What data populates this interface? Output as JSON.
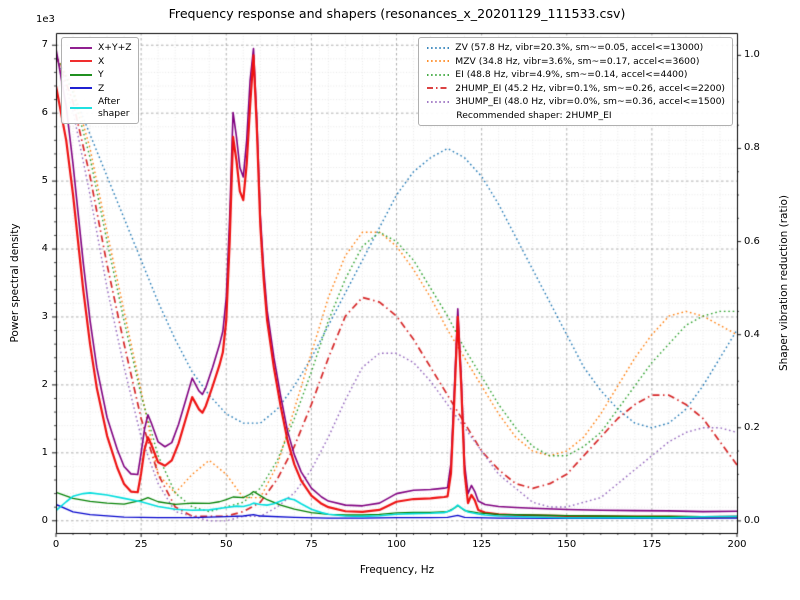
{
  "chart_data": {
    "type": "line",
    "title": "Frequency response and shapers (resonances_x_20201129_111533.csv)",
    "xlabel": "Frequency, Hz",
    "ylabel": "Power spectral density",
    "y2label": "Shaper vibration reduction (ratio)",
    "xlim": [
      0,
      200
    ],
    "ylim": [
      -180,
      7180
    ],
    "y2lim": [
      -0.026,
      1.048
    ],
    "x_ticks": {
      "values": [
        0,
        25,
        50,
        75,
        100,
        125,
        150,
        175,
        200
      ],
      "labels": [
        "0",
        "25",
        "50",
        "75",
        "100",
        "125",
        "150",
        "175",
        "200"
      ]
    },
    "y_ticks": {
      "values": [
        0,
        1000,
        2000,
        3000,
        4000,
        5000,
        6000,
        7000
      ],
      "labels": [
        "0",
        "1",
        "2",
        "3",
        "4",
        "5",
        "6",
        "7"
      ],
      "offset_text": "1e3"
    },
    "y2_ticks": {
      "values": [
        0,
        0.2,
        0.4,
        0.6,
        0.8,
        1.0
      ],
      "labels": [
        "0.0",
        "0.2",
        "0.4",
        "0.6",
        "0.8",
        "1.0"
      ]
    },
    "grid": {
      "x_minor_step": 5,
      "y_minor_step": 200,
      "major_color": "#9b9b9b",
      "minor_color": "#dedede"
    },
    "legend_psd": {
      "items": [
        {
          "label": "X+Y+Z",
          "color": "#800080",
          "dash": "solid"
        },
        {
          "label": "X",
          "color": "#ee1111",
          "dash": "solid"
        },
        {
          "label": "Y",
          "color": "#008000",
          "dash": "solid"
        },
        {
          "label": "Z",
          "color": "#0000cc",
          "dash": "solid"
        },
        {
          "label": "After shaper",
          "color": "#00dddd",
          "dash": "solid"
        }
      ]
    },
    "legend_shapers": {
      "items": [
        {
          "label": "ZV (57.8 Hz, vibr=20.3%, sm~=0.05, accel<=13000)",
          "color": "#1f77b4",
          "dash": "dotted"
        },
        {
          "label": "MZV (34.8 Hz, vibr=3.6%, sm~=0.17, accel<=3600)",
          "color": "#ff7f0e",
          "dash": "dotted"
        },
        {
          "label": "EI (48.8 Hz, vibr=4.9%, sm~=0.14, accel<=4400)",
          "color": "#2ca02c",
          "dash": "dotted"
        },
        {
          "label": "2HUMP_EI (45.2 Hz, vibr=0.1%, sm~=0.26, accel<=2200)",
          "color": "#d62728",
          "dash": "dashdot"
        },
        {
          "label": "3HUMP_EI (48.0 Hz, vibr=0.0%, sm~=0.36, accel<=1500)",
          "color": "#9467bd",
          "dash": "dotted"
        }
      ],
      "note": "Recommended shaper: 2HUMP_EI"
    },
    "series": [
      {
        "name": "ZV",
        "axis": "right",
        "color": "#1f77b4",
        "dash": "dotted",
        "width": 1.4,
        "x": [
          0,
          5,
          10,
          15,
          20,
          25,
          30,
          35,
          40,
          45,
          50,
          55,
          60,
          65,
          70,
          75,
          80,
          85,
          90,
          95,
          100,
          105,
          110,
          115,
          120,
          125,
          130,
          135,
          140,
          145,
          150,
          155,
          160,
          165,
          170,
          175,
          180,
          185,
          190,
          195,
          200
        ],
        "y": [
          1.0,
          0.92,
          0.83,
          0.74,
          0.65,
          0.56,
          0.47,
          0.39,
          0.32,
          0.27,
          0.23,
          0.21,
          0.21,
          0.24,
          0.29,
          0.35,
          0.42,
          0.49,
          0.56,
          0.63,
          0.7,
          0.75,
          0.78,
          0.8,
          0.78,
          0.74,
          0.68,
          0.61,
          0.54,
          0.47,
          0.4,
          0.33,
          0.28,
          0.24,
          0.21,
          0.2,
          0.21,
          0.24,
          0.29,
          0.35,
          0.41
        ]
      },
      {
        "name": "MZV",
        "axis": "right",
        "color": "#ff7f0e",
        "dash": "dotted",
        "width": 1.4,
        "x": [
          0,
          5,
          10,
          15,
          20,
          25,
          30,
          35,
          40,
          45,
          50,
          55,
          60,
          65,
          70,
          75,
          80,
          85,
          90,
          95,
          100,
          105,
          110,
          115,
          120,
          125,
          130,
          135,
          140,
          145,
          150,
          155,
          160,
          165,
          170,
          175,
          180,
          185,
          190,
          195,
          200
        ],
        "y": [
          1.0,
          0.93,
          0.8,
          0.62,
          0.45,
          0.28,
          0.1,
          0.06,
          0.1,
          0.13,
          0.1,
          0.05,
          0.05,
          0.12,
          0.24,
          0.36,
          0.48,
          0.57,
          0.62,
          0.62,
          0.59,
          0.54,
          0.48,
          0.41,
          0.35,
          0.29,
          0.23,
          0.18,
          0.15,
          0.14,
          0.15,
          0.18,
          0.23,
          0.29,
          0.35,
          0.4,
          0.44,
          0.45,
          0.44,
          0.42,
          0.4
        ]
      },
      {
        "name": "EI",
        "axis": "right",
        "color": "#2ca02c",
        "dash": "dotted",
        "width": 1.4,
        "x": [
          0,
          5,
          10,
          15,
          20,
          25,
          30,
          35,
          40,
          45,
          50,
          55,
          60,
          65,
          70,
          75,
          80,
          85,
          90,
          95,
          100,
          105,
          110,
          115,
          120,
          125,
          130,
          135,
          140,
          145,
          150,
          155,
          160,
          165,
          170,
          175,
          180,
          185,
          190,
          195,
          200
        ],
        "y": [
          1.0,
          0.92,
          0.78,
          0.6,
          0.43,
          0.27,
          0.14,
          0.06,
          0.03,
          0.02,
          0.03,
          0.04,
          0.07,
          0.13,
          0.22,
          0.32,
          0.43,
          0.52,
          0.59,
          0.62,
          0.6,
          0.56,
          0.5,
          0.44,
          0.37,
          0.31,
          0.25,
          0.2,
          0.16,
          0.14,
          0.14,
          0.16,
          0.19,
          0.24,
          0.29,
          0.34,
          0.38,
          0.42,
          0.44,
          0.45,
          0.45
        ]
      },
      {
        "name": "2HUMP_EI",
        "axis": "right",
        "color": "#d62728",
        "dash": "dashdot",
        "width": 1.7,
        "x": [
          0,
          5,
          10,
          15,
          20,
          25,
          30,
          35,
          40,
          45,
          50,
          55,
          60,
          65,
          70,
          75,
          80,
          85,
          90,
          95,
          100,
          105,
          110,
          115,
          120,
          125,
          130,
          135,
          140,
          145,
          150,
          155,
          160,
          165,
          170,
          175,
          180,
          185,
          190,
          195,
          200
        ],
        "y": [
          1.0,
          0.9,
          0.74,
          0.55,
          0.38,
          0.22,
          0.1,
          0.03,
          0.01,
          0.01,
          0.01,
          0.02,
          0.04,
          0.09,
          0.16,
          0.25,
          0.35,
          0.44,
          0.48,
          0.47,
          0.44,
          0.39,
          0.33,
          0.27,
          0.21,
          0.15,
          0.11,
          0.08,
          0.07,
          0.08,
          0.1,
          0.14,
          0.18,
          0.22,
          0.25,
          0.27,
          0.27,
          0.25,
          0.22,
          0.17,
          0.12
        ]
      },
      {
        "name": "3HUMP_EI",
        "axis": "right",
        "color": "#9467bd",
        "dash": "dotted",
        "width": 1.4,
        "x": [
          0,
          5,
          10,
          15,
          20,
          25,
          30,
          35,
          40,
          45,
          50,
          55,
          60,
          65,
          70,
          75,
          80,
          85,
          90,
          95,
          100,
          105,
          110,
          115,
          120,
          125,
          130,
          135,
          140,
          145,
          150,
          155,
          160,
          165,
          170,
          175,
          180,
          185,
          190,
          195,
          200
        ],
        "y": [
          1.0,
          0.88,
          0.7,
          0.5,
          0.33,
          0.18,
          0.08,
          0.02,
          0.01,
          0.0,
          0.0,
          0.01,
          0.01,
          0.03,
          0.06,
          0.11,
          0.18,
          0.26,
          0.33,
          0.36,
          0.36,
          0.34,
          0.3,
          0.25,
          0.2,
          0.15,
          0.1,
          0.07,
          0.04,
          0.03,
          0.03,
          0.04,
          0.05,
          0.08,
          0.11,
          0.14,
          0.17,
          0.19,
          0.2,
          0.2,
          0.19
        ]
      },
      {
        "name": "X+Y+Z",
        "axis": "left",
        "color": "#800080",
        "dash": "solid",
        "width": 1.6,
        "x": [
          0,
          3,
          5,
          8,
          10,
          12,
          15,
          18,
          20,
          22,
          24,
          25,
          26,
          27,
          28,
          30,
          32,
          34,
          36,
          38,
          40,
          42,
          43,
          44,
          46,
          48,
          49,
          50,
          51,
          52,
          53,
          54,
          55,
          56,
          57,
          58,
          59,
          60,
          61,
          62,
          64,
          66,
          68,
          70,
          72,
          75,
          78,
          80,
          85,
          90,
          95,
          100,
          105,
          110,
          112,
          114,
          115,
          116,
          117,
          118,
          119,
          120,
          121,
          122,
          123,
          124,
          126,
          130,
          135,
          140,
          150,
          160,
          170,
          180,
          190,
          200
        ],
        "y": [
          6950,
          6100,
          5250,
          3800,
          2950,
          2250,
          1520,
          1050,
          800,
          690,
          680,
          1000,
          1350,
          1560,
          1440,
          1160,
          1090,
          1150,
          1420,
          1760,
          2100,
          1910,
          1860,
          1960,
          2260,
          2590,
          2790,
          3280,
          4460,
          6010,
          5650,
          5200,
          5060,
          5600,
          6480,
          6950,
          5900,
          4500,
          3700,
          3100,
          2400,
          1830,
          1320,
          970,
          720,
          480,
          350,
          290,
          230,
          220,
          260,
          400,
          450,
          460,
          470,
          480,
          490,
          850,
          1950,
          3120,
          2130,
          830,
          400,
          520,
          430,
          290,
          240,
          210,
          195,
          185,
          165,
          155,
          150,
          145,
          135,
          140
        ]
      },
      {
        "name": "X",
        "axis": "left",
        "color": "#ee1111",
        "dash": "solid",
        "width": 2.2,
        "x": [
          0,
          3,
          5,
          8,
          10,
          12,
          15,
          18,
          20,
          22,
          24,
          25,
          26,
          27,
          28,
          30,
          32,
          34,
          36,
          38,
          40,
          42,
          43,
          44,
          46,
          48,
          49,
          50,
          51,
          52,
          53,
          54,
          55,
          56,
          57,
          58,
          59,
          60,
          61,
          62,
          64,
          66,
          68,
          70,
          72,
          75,
          78,
          80,
          85,
          90,
          95,
          100,
          105,
          110,
          112,
          114,
          115,
          116,
          117,
          118,
          119,
          120,
          121,
          122,
          123,
          124,
          126,
          130,
          135,
          140,
          150,
          160,
          170,
          180,
          190,
          200
        ],
        "y": [
          6400,
          5600,
          4800,
          3400,
          2600,
          1950,
          1250,
          780,
          540,
          430,
          420,
          700,
          1050,
          1230,
          1120,
          860,
          810,
          890,
          1140,
          1480,
          1820,
          1640,
          1590,
          1690,
          1980,
          2290,
          2480,
          2950,
          4100,
          5650,
          5300,
          4850,
          4720,
          5250,
          6100,
          6850,
          5750,
          4350,
          3550,
          2950,
          2250,
          1680,
          1180,
          830,
          590,
          370,
          250,
          200,
          140,
          130,
          160,
          280,
          320,
          330,
          340,
          350,
          360,
          700,
          1800,
          3000,
          2000,
          700,
          260,
          380,
          300,
          160,
          120,
          95,
          85,
          80,
          70,
          65,
          62,
          60,
          55,
          60
        ]
      },
      {
        "name": "Y",
        "axis": "left",
        "color": "#008000",
        "dash": "solid",
        "width": 1.3,
        "x": [
          0,
          5,
          10,
          15,
          20,
          25,
          27,
          30,
          35,
          40,
          45,
          48,
          50,
          52,
          55,
          57,
          58,
          60,
          62,
          66,
          70,
          75,
          80,
          85,
          90,
          95,
          100,
          105,
          110,
          115,
          117,
          118,
          120,
          124,
          130,
          140,
          150,
          160,
          170,
          180,
          190,
          200
        ],
        "y": [
          420,
          330,
          285,
          260,
          245,
          300,
          340,
          280,
          240,
          260,
          255,
          280,
          310,
          350,
          340,
          390,
          430,
          370,
          310,
          230,
          170,
          120,
          95,
          85,
          85,
          95,
          115,
          125,
          125,
          135,
          185,
          225,
          150,
          115,
          95,
          85,
          75,
          70,
          65,
          65,
          60,
          60
        ]
      },
      {
        "name": "Z",
        "axis": "left",
        "color": "#0000cc",
        "dash": "solid",
        "width": 1.3,
        "x": [
          0,
          5,
          10,
          20,
          30,
          40,
          50,
          55,
          58,
          60,
          70,
          80,
          90,
          100,
          110,
          115,
          118,
          120,
          130,
          150,
          170,
          200
        ],
        "y": [
          240,
          130,
          90,
          55,
          45,
          45,
          60,
          70,
          90,
          70,
          50,
          40,
          40,
          45,
          45,
          50,
          80,
          50,
          40,
          35,
          35,
          40
        ]
      },
      {
        "name": "After shaper",
        "axis": "left",
        "color": "#00dddd",
        "dash": "solid",
        "width": 1.6,
        "x": [
          0,
          3,
          5,
          8,
          10,
          15,
          20,
          25,
          30,
          35,
          40,
          45,
          50,
          53,
          55,
          57,
          58,
          60,
          62,
          64,
          66,
          68,
          70,
          72,
          75,
          78,
          80,
          85,
          90,
          95,
          100,
          105,
          110,
          114,
          116,
          117,
          118,
          119,
          121,
          124,
          126,
          130,
          140,
          150,
          160,
          170,
          180,
          190,
          200
        ],
        "y": [
          150,
          280,
          360,
          400,
          410,
          380,
          330,
          280,
          210,
          170,
          155,
          160,
          195,
          215,
          210,
          235,
          260,
          240,
          230,
          250,
          290,
          330,
          310,
          250,
          170,
          120,
          95,
          70,
          65,
          75,
          95,
          105,
          110,
          120,
          150,
          190,
          230,
          190,
          130,
          100,
          85,
          70,
          55,
          45,
          45,
          45,
          45,
          60,
          65
        ]
      }
    ]
  }
}
